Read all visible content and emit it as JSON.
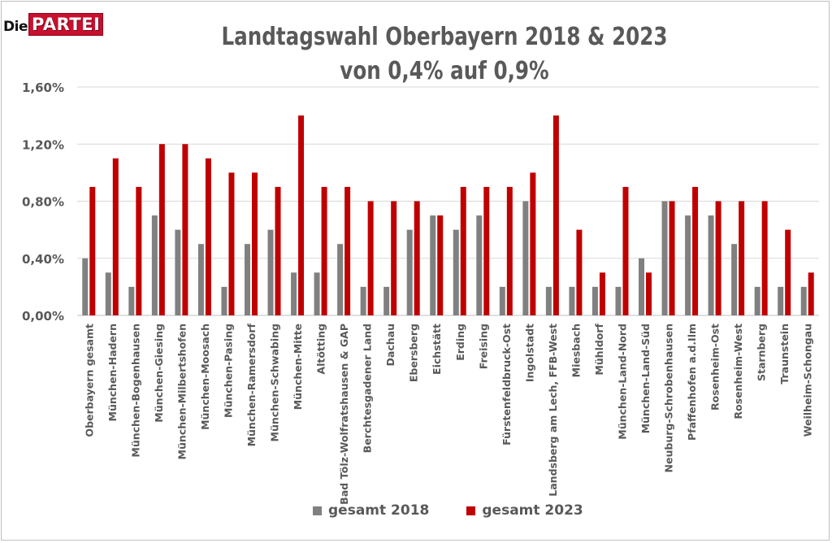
{
  "logo": {
    "die": "Die",
    "partei": "PARTEI"
  },
  "chart_data": {
    "type": "bar",
    "title": "Landtagswahl Oberbayern 2018 & 2023",
    "subtitle": "von 0,4% auf 0,9%",
    "ylim": [
      0,
      1.6
    ],
    "yticks": [
      0,
      0.4,
      0.8,
      1.2,
      1.6
    ],
    "ytick_labels": [
      "0,00%",
      "0,40%",
      "0,80%",
      "1,20%",
      "1,60%"
    ],
    "grid": true,
    "legend_position": "bottom",
    "categories": [
      "Oberbayern gesamt",
      "München-Hadern",
      "München-Bogenhausen",
      "München-Giesing",
      "München-Milbertshofen",
      "München-Moosach",
      "München-Pasing",
      "München-Ramersdorf",
      "München-Schwabing",
      "München-Mitte",
      "Altötting",
      "Bad Tölz-Wolfratshausen & GAP",
      "Berchtesgadener Land",
      "Dachau",
      "Ebersberg",
      "Eichstätt",
      "Erding",
      "Freising",
      "Fürstenfeldbruck-Ost",
      "Ingolstadt",
      "Landsberg am Lech, FFB-West",
      "Miesbach",
      "Mühldorf",
      "München-Land-Nord",
      "München-Land-Süd",
      "Neuburg-Schrobenhausen",
      "Pfaffenhofen a.d.Ilm",
      "Rosenheim-Ost",
      "Rosenheim-West",
      "Starnberg",
      "Traunstein",
      "Weilheim-Schongau"
    ],
    "series": [
      {
        "name": "gesamt 2018",
        "color": "#808080",
        "values": [
          0.4,
          0.3,
          0.2,
          0.7,
          0.6,
          0.5,
          0.2,
          0.5,
          0.6,
          0.3,
          0.3,
          0.5,
          0.2,
          0.2,
          0.6,
          0.7,
          0.6,
          0.7,
          0.2,
          0.8,
          0.2,
          0.2,
          0.2,
          0.2,
          0.4,
          0.8,
          0.7,
          0.7,
          0.5,
          0.2,
          0.2,
          0.2
        ]
      },
      {
        "name": "gesamt 2023",
        "color": "#c00000",
        "values": [
          0.9,
          1.1,
          0.9,
          1.2,
          1.2,
          1.1,
          1.0,
          1.0,
          0.9,
          1.4,
          0.9,
          0.9,
          0.8,
          0.8,
          0.8,
          0.7,
          0.9,
          0.9,
          0.9,
          1.0,
          1.4,
          0.6,
          0.3,
          0.9,
          0.3,
          0.8,
          0.9,
          0.8,
          0.8,
          0.8,
          0.6,
          0.3
        ]
      }
    ]
  }
}
